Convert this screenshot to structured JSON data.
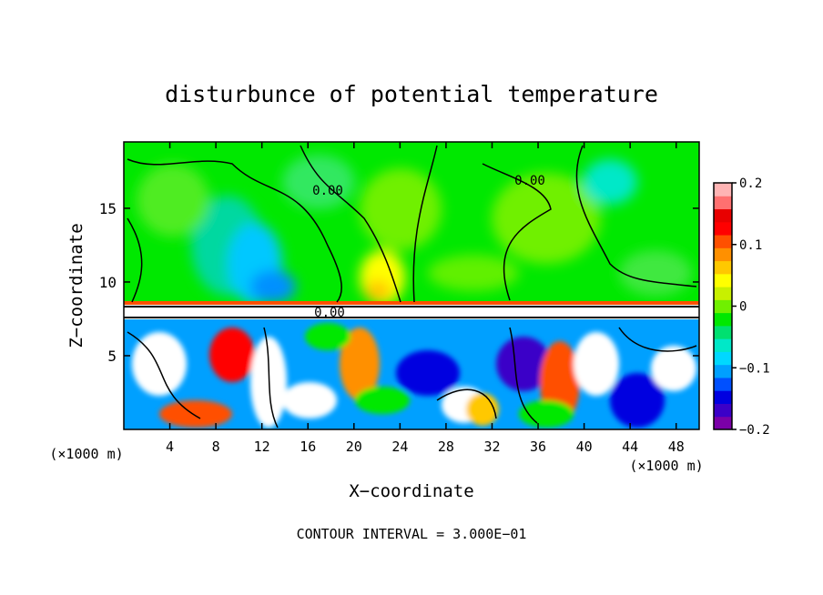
{
  "chart_data": {
    "type": "heatmap",
    "title": "disturbunce of potential temperature",
    "xlabel": "X−coordinate",
    "ylabel": "Z−coordinate",
    "x_unit_left": "(×1000 m)",
    "x_unit_right": "(×1000 m)",
    "xlim": [
      0,
      50
    ],
    "ylim": [
      0,
      19.5
    ],
    "x_ticks": [
      "4",
      "8",
      "12",
      "16",
      "20",
      "24",
      "28",
      "32",
      "36",
      "40",
      "44",
      "48"
    ],
    "x_tick_values": [
      4,
      8,
      12,
      16,
      20,
      24,
      28,
      32,
      36,
      40,
      44,
      48
    ],
    "y_ticks": [
      "5",
      "10",
      "15"
    ],
    "y_tick_values": [
      5,
      10,
      15
    ],
    "colorbar": {
      "ticks": [
        "0.2",
        "0.1",
        "0",
        "−0.1",
        "−0.2"
      ],
      "tick_values": [
        0.2,
        0.1,
        0,
        -0.1,
        -0.2
      ],
      "range": [
        -0.2,
        0.2
      ],
      "colors": [
        "#7b00a8",
        "#3b00c8",
        "#0000e0",
        "#0050ff",
        "#00a0ff",
        "#00d8ff",
        "#00e8c8",
        "#00e070",
        "#00e800",
        "#70f000",
        "#c8f000",
        "#ffff00",
        "#ffc800",
        "#ff9000",
        "#ff5000",
        "#ff0000",
        "#e80000",
        "#ff7070",
        "#ffb4b4"
      ]
    },
    "contour_labels": [
      "0.00",
      "0.00",
      "0.00"
    ],
    "footnote": "CONTOUR INTERVAL = 3.000E−01",
    "legend": "right",
    "grid": false
  }
}
